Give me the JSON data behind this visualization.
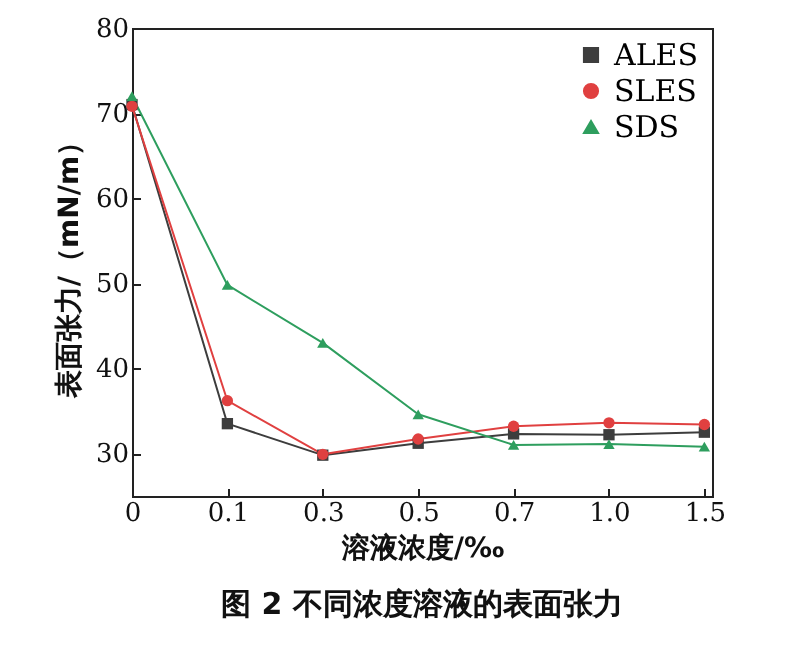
{
  "chart_data": {
    "type": "line",
    "title": "图 2   不同浓度溶液的表面张力",
    "xlabel": "溶液浓度/‰",
    "ylabel": "表面张力/（mN/m）",
    "categories": [
      "0",
      "0.1",
      "0.3",
      "0.5",
      "0.7",
      "1.0",
      "1.5"
    ],
    "series": [
      {
        "name": "ALES",
        "color": "#3d3d3d",
        "marker": "square",
        "values": [
          71.0,
          33.5,
          29.8,
          31.2,
          32.3,
          32.2,
          32.5
        ]
      },
      {
        "name": "SLES",
        "color": "#e04040",
        "marker": "circle",
        "values": [
          70.8,
          36.2,
          29.9,
          31.7,
          33.2,
          33.6,
          33.4
        ]
      },
      {
        "name": "SDS",
        "color": "#2e9e5e",
        "marker": "triangle",
        "values": [
          72.0,
          49.8,
          43.0,
          34.6,
          31.0,
          31.1,
          30.8
        ]
      }
    ],
    "ylim": [
      25,
      80
    ],
    "yticks": [
      30,
      40,
      50,
      60,
      70,
      80
    ],
    "legend": "top right",
    "grid": false
  }
}
